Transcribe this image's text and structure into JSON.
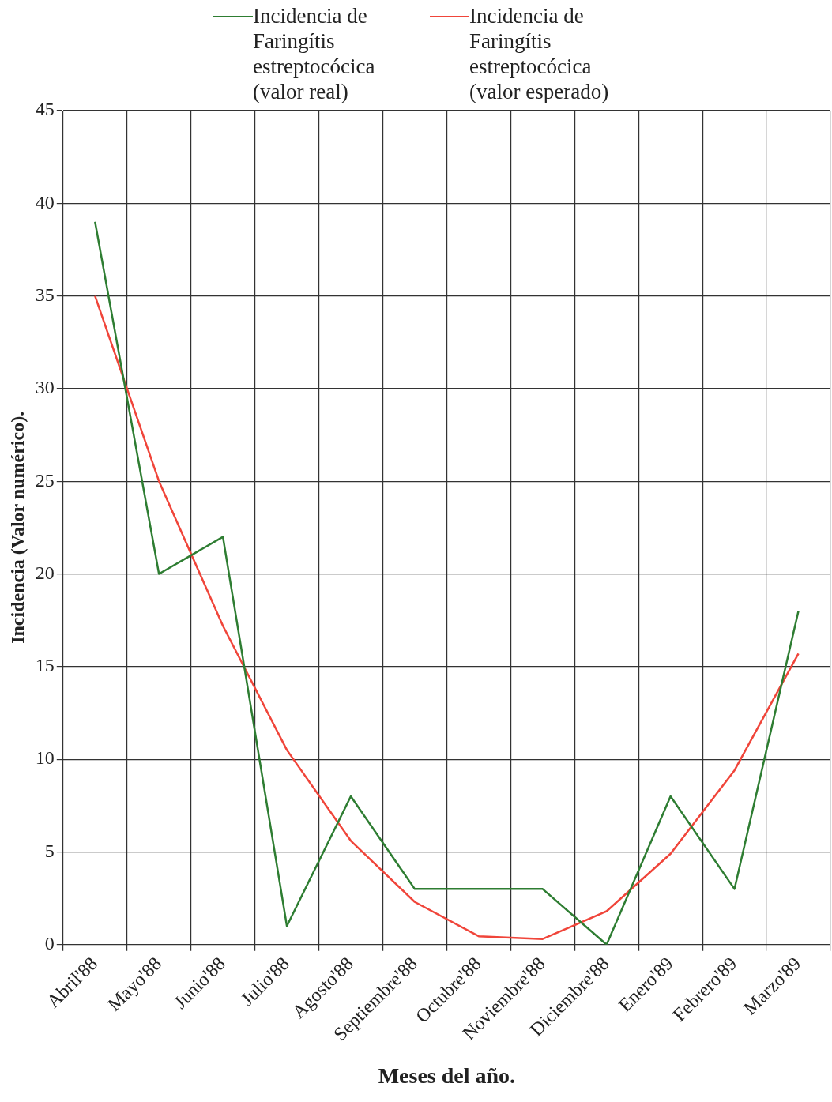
{
  "chart_data": {
    "type": "line",
    "xlabel": "Meses del año.",
    "ylabel": "Incidencia (Valor numérico).",
    "categories": [
      "Abril'88",
      "Mayo'88",
      "Junio'88",
      "Julio'88",
      "Agosto'88",
      "Septiembre'88",
      "Octubre'88",
      "Noviembre'88",
      "Diciembre'88",
      "Enero'89",
      "Febrero'89",
      "Marzo'89"
    ],
    "series": [
      {
        "name": "Incidencia de Faringítis estreptocócica (valor real)",
        "color": "#2e7d32",
        "values": [
          39,
          20,
          22,
          1,
          8,
          3,
          3,
          3,
          0,
          8,
          3,
          18
        ]
      },
      {
        "name": "Incidencia de Faringítis estreptocócica (valor esperado)",
        "color": "#f0453a",
        "values": [
          35,
          25,
          17.2,
          10.5,
          5.6,
          2.3,
          0.45,
          0.3,
          1.8,
          4.9,
          9.4,
          15.7
        ]
      }
    ],
    "ylim": [
      0,
      45
    ],
    "yticks": [
      0,
      5,
      10,
      15,
      20,
      25,
      30,
      35,
      40,
      45
    ],
    "grid": true,
    "legend": "top",
    "marker": "none",
    "line_style": "solid"
  }
}
